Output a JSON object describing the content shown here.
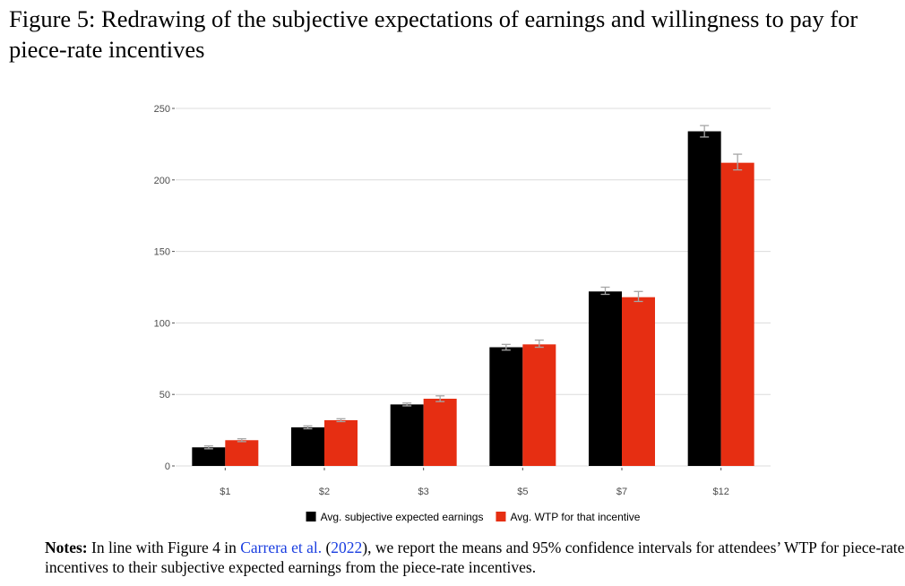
{
  "figure": {
    "title": "Figure 5: Redrawing of the subjective expectations of earnings and willingness to pay for piece-rate incentives"
  },
  "notes": {
    "label": "Notes:",
    "text_before": " In line with Figure 4 in ",
    "citation_authors": "Carrera et al.",
    "paren_open": " (",
    "citation_year": "2022",
    "text_after": "), we report the means and 95% confidence intervals for attendees’ WTP for piece-rate incentives to their subjective expected earnings from the piece-rate incentives."
  },
  "chart_data": {
    "type": "bar",
    "categories": [
      "$1",
      "$2",
      "$3",
      "$5",
      "$7",
      "$12"
    ],
    "series": [
      {
        "name": "Avg. subjective expected earnings",
        "color": "#000000",
        "values": [
          13,
          27,
          43,
          83,
          122,
          234
        ],
        "ci_low": [
          12,
          26,
          42,
          81,
          120,
          230
        ],
        "ci_high": [
          14,
          28,
          44,
          85,
          125,
          238
        ]
      },
      {
        "name": "Avg. WTP for that incentive",
        "color": "#e62e12",
        "values": [
          18,
          32,
          47,
          85,
          118,
          212
        ],
        "ci_low": [
          17,
          31,
          45,
          83,
          115,
          207
        ],
        "ci_high": [
          19,
          33,
          49,
          88,
          122,
          218
        ]
      }
    ],
    "ylim": [
      0,
      250
    ],
    "yticks": [
      0,
      50,
      100,
      150,
      200,
      250
    ],
    "xlabel": "",
    "ylabel": "",
    "grid": true,
    "legend_position": "bottom",
    "error_bar_color": "#a6a6a6"
  }
}
